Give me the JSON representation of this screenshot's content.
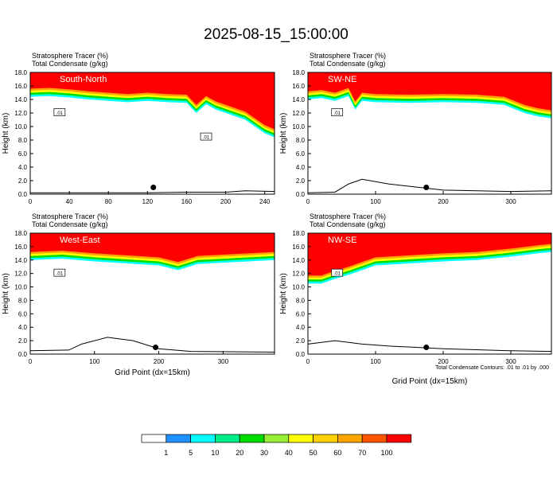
{
  "title": "2025-08-15_15:00:00",
  "colors": {
    "levels": [
      "#ffffff",
      "#1e90ff",
      "#00ffff",
      "#00ee88",
      "#00dd00",
      "#99ee33",
      "#ffff00",
      "#ffd000",
      "#ffa500",
      "#ff5500",
      "#ff0000"
    ],
    "contour": "#000000"
  },
  "colorbar": {
    "labels": [
      "1",
      "5",
      "10",
      "20",
      "30",
      "40",
      "50",
      "60",
      "70",
      "100"
    ]
  },
  "footnote": "Total Condensate Contours: .01 to .01 by .000",
  "chart_data": [
    {
      "type": "heatmap",
      "name": "South-North",
      "field_labels": [
        "Stratosphere Tracer   (%)",
        "Total Condensate   (g/kg)"
      ],
      "ylabel": "Height (km)",
      "xlabel": "",
      "xlim": [
        0,
        250
      ],
      "ylim": [
        0,
        18
      ],
      "xticks": [
        "0",
        "40",
        "80",
        "120",
        "160",
        "200",
        "240"
      ],
      "yticks": [
        "0.0",
        "2.0",
        "4.0",
        "6.0",
        "8.0",
        "10.0",
        "12.0",
        "14.0",
        "16.0",
        "18.0"
      ],
      "contour_labels": [
        ".01",
        ".01"
      ],
      "tropopause_km": {
        "x": [
          0,
          20,
          40,
          60,
          80,
          100,
          120,
          140,
          160,
          170,
          180,
          190,
          200,
          220,
          240,
          250
        ],
        "y": [
          14.4,
          14.5,
          14.3,
          14.0,
          13.8,
          13.6,
          13.8,
          13.6,
          13.5,
          12.0,
          13.3,
          12.5,
          12.0,
          11.0,
          9.0,
          8.4
        ]
      },
      "terrain_km": {
        "x": [
          0,
          60,
          120,
          160,
          200,
          220,
          250
        ],
        "y": [
          0.2,
          0.2,
          0.2,
          0.3,
          0.3,
          0.5,
          0.4
        ]
      },
      "marker": {
        "x": 126,
        "y": 1.0
      }
    },
    {
      "type": "heatmap",
      "name": "SW-NE",
      "field_labels": [
        "Stratosphere Tracer   (%)",
        "Total Condensate   (g/kg)"
      ],
      "ylabel": "Height (km)",
      "xlabel": "",
      "xlim": [
        0,
        360
      ],
      "ylim": [
        0,
        18
      ],
      "xticks": [
        "0",
        "100",
        "200",
        "300"
      ],
      "yticks": [
        "0.0",
        "2.0",
        "4.0",
        "6.0",
        "8.0",
        "10.0",
        "12.0",
        "14.0",
        "16.0",
        "18.0"
      ],
      "contour_labels": [
        ".01"
      ],
      "tropopause_km": {
        "x": [
          0,
          20,
          40,
          60,
          70,
          80,
          100,
          150,
          200,
          250,
          290,
          320,
          340,
          360
        ],
        "y": [
          14.0,
          14.2,
          13.8,
          14.5,
          12.5,
          13.8,
          13.6,
          13.5,
          13.6,
          13.5,
          13.2,
          12.0,
          11.5,
          11.2
        ]
      },
      "terrain_km": {
        "x": [
          0,
          40,
          60,
          80,
          120,
          200,
          300,
          360
        ],
        "y": [
          0.2,
          0.3,
          1.5,
          2.2,
          1.5,
          0.6,
          0.4,
          0.5
        ]
      },
      "marker": {
        "x": 175,
        "y": 1.0
      }
    },
    {
      "type": "heatmap",
      "name": "West-East",
      "field_labels": [
        "Stratosphere Tracer   (%)",
        "Total Condensate   (g/kg)"
      ],
      "ylabel": "Height (km)",
      "xlabel": "Grid Point (dx=15km)",
      "xlim": [
        0,
        380
      ],
      "ylim": [
        0,
        18
      ],
      "xticks": [
        "0",
        "100",
        "200",
        "300"
      ],
      "yticks": [
        "0.0",
        "2.0",
        "4.0",
        "6.0",
        "8.0",
        "10.0",
        "12.0",
        "14.0",
        "16.0",
        "18.0"
      ],
      "contour_labels": [
        ".01"
      ],
      "tropopause_km": {
        "x": [
          0,
          50,
          100,
          150,
          200,
          230,
          260,
          300,
          340,
          380
        ],
        "y": [
          14.0,
          14.2,
          13.8,
          13.5,
          13.2,
          12.5,
          13.4,
          13.6,
          13.8,
          14.0
        ]
      },
      "terrain_km": {
        "x": [
          0,
          60,
          80,
          120,
          160,
          200,
          250,
          380
        ],
        "y": [
          0.5,
          0.6,
          1.5,
          2.5,
          2.0,
          0.8,
          0.4,
          0.3
        ]
      },
      "marker": {
        "x": 195,
        "y": 1.0
      }
    },
    {
      "type": "heatmap",
      "name": "NW-SE",
      "field_labels": [
        "Stratosphere Tracer   (%)",
        "Total Condensate   (g/kg)"
      ],
      "ylabel": "Height (km)",
      "xlabel": "Grid Point (dx=15km)",
      "xlim": [
        0,
        360
      ],
      "ylim": [
        0,
        18
      ],
      "xticks": [
        "0",
        "100",
        "200",
        "300"
      ],
      "yticks": [
        "0.0",
        "2.0",
        "4.0",
        "6.0",
        "8.0",
        "10.0",
        "12.0",
        "14.0",
        "16.0",
        "18.0"
      ],
      "contour_labels": [
        ".01"
      ],
      "tropopause_km": {
        "x": [
          0,
          20,
          40,
          60,
          80,
          100,
          150,
          200,
          250,
          300,
          340,
          360
        ],
        "y": [
          10.5,
          10.5,
          11.2,
          11.8,
          12.5,
          13.2,
          13.5,
          13.8,
          14.0,
          14.5,
          15.0,
          15.2
        ]
      },
      "terrain_km": {
        "x": [
          0,
          40,
          80,
          120,
          200,
          300,
          360
        ],
        "y": [
          1.5,
          2.0,
          1.5,
          1.2,
          0.8,
          0.5,
          0.4
        ]
      },
      "marker": {
        "x": 175,
        "y": 1.0
      }
    }
  ]
}
